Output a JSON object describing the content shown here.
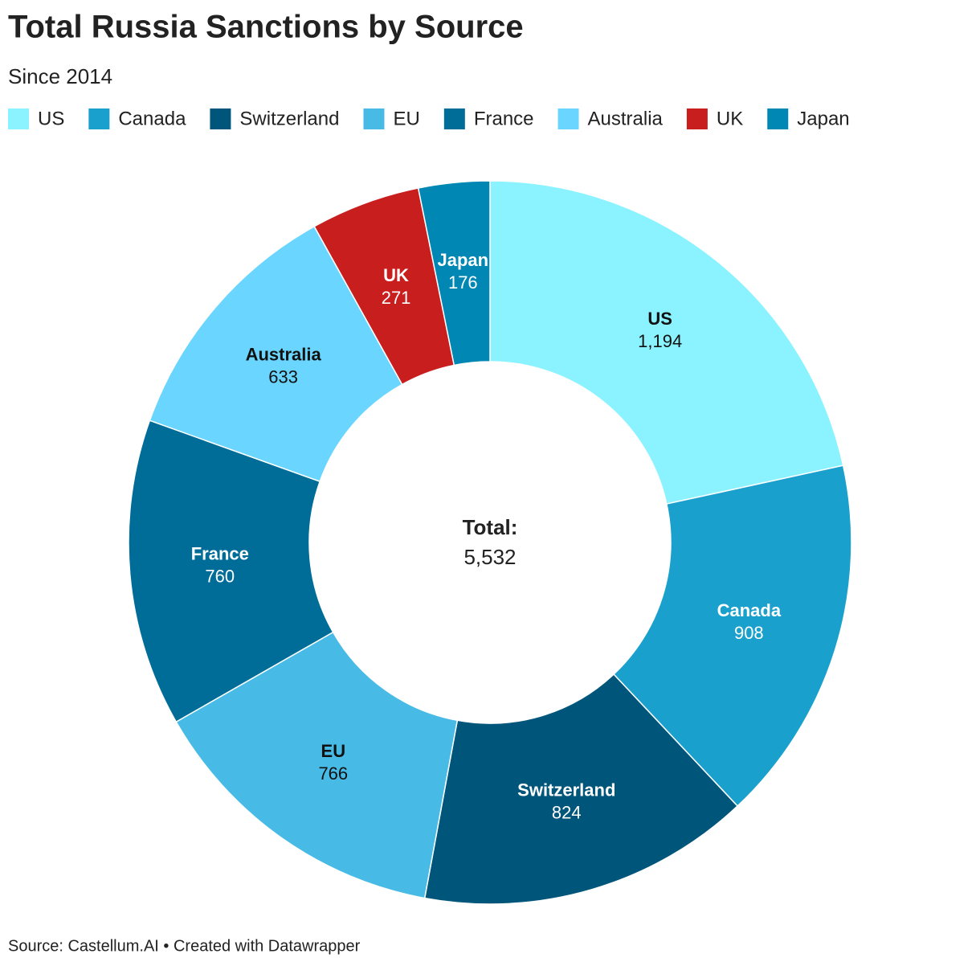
{
  "chart_data": {
    "type": "donut",
    "title": "Total Russia Sanctions by Source",
    "subtitle": "Since 2014",
    "categories": [
      "US",
      "Canada",
      "Switzerland",
      "EU",
      "France",
      "Australia",
      "UK",
      "Japan"
    ],
    "values": [
      1194,
      908,
      824,
      766,
      760,
      633,
      271,
      176
    ],
    "value_labels": [
      "1,194",
      "908",
      "824",
      "766",
      "760",
      "633",
      "271",
      "176"
    ],
    "colors": [
      "#8af3ff",
      "#1aa0cc",
      "#00557a",
      "#47bbe6",
      "#006d99",
      "#6ad6ff",
      "#c81e1e",
      "#0087b3"
    ],
    "center_label": "Total:",
    "total": {
      "value": 5532,
      "label": "5,532"
    },
    "legend": "top-left",
    "source": "Source: Castellum.AI • Created with Datawrapper"
  }
}
